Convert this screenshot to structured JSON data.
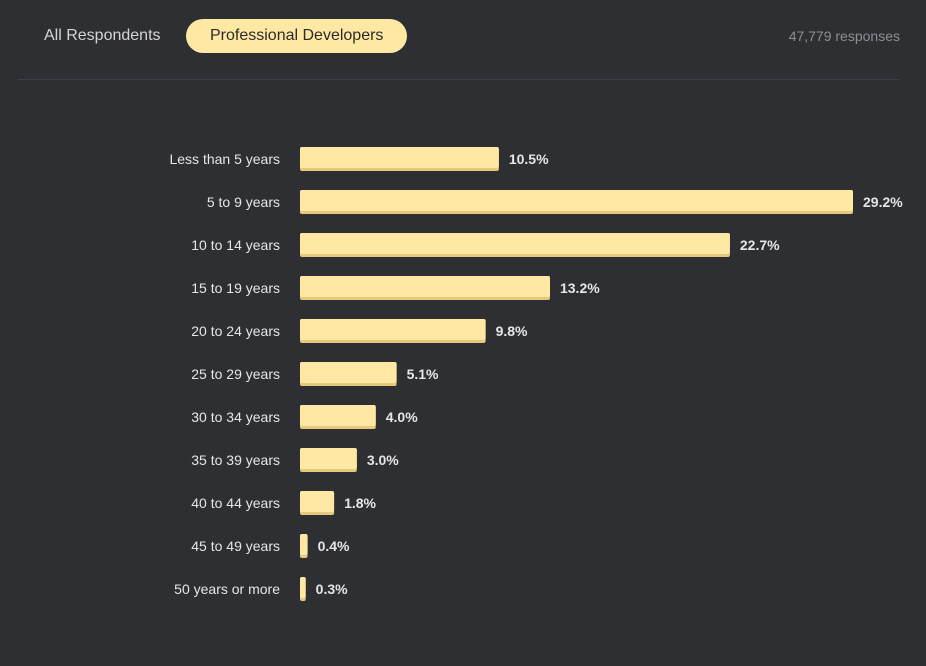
{
  "tabs": [
    {
      "label": "All Respondents",
      "active": false
    },
    {
      "label": "Professional Developers",
      "active": true
    }
  ],
  "responses_label": "47,779 responses",
  "colors": {
    "background": "#2d2f33",
    "bar": "#fee8a3",
    "bar_shadow": "#e6c97a",
    "text": "#e6e6e6"
  },
  "chart_data": {
    "type": "bar",
    "orientation": "horizontal",
    "categories": [
      "Less than 5 years",
      "5 to 9 years",
      "10 to 14 years",
      "15 to 19 years",
      "20 to 24 years",
      "25 to 29 years",
      "30 to 34 years",
      "35 to 39 years",
      "40 to 44 years",
      "45 to 49 years",
      "50 years or more"
    ],
    "values": [
      10.5,
      29.2,
      22.7,
      13.2,
      9.8,
      5.1,
      4.0,
      3.0,
      1.8,
      0.4,
      0.3
    ],
    "value_labels": [
      "10.5%",
      "29.2%",
      "22.7%",
      "13.2%",
      "9.8%",
      "5.1%",
      "4.0%",
      "3.0%",
      "1.8%",
      "0.4%",
      "0.3%"
    ],
    "unit": "%",
    "xlim": [
      0,
      29.2
    ],
    "grid": false,
    "legend": "none"
  }
}
